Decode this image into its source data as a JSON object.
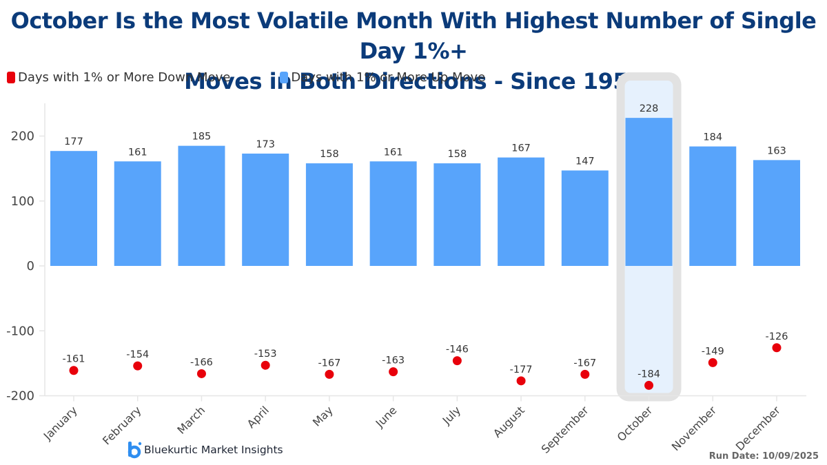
{
  "chart_data": {
    "type": "bar",
    "title": "October Is the Most Volatile Month With Highest Number of Single Day 1%+ Moves in Both Directions - Since 1950",
    "title_lines": [
      "October Is the Most Volatile Month With Highest Number of Single Day 1%+",
      "Moves in Both Directions - Since 1950"
    ],
    "xlabel": "",
    "ylabel": "",
    "ylim": [
      -200,
      250
    ],
    "yticks": [
      200,
      100,
      0,
      -100,
      -200
    ],
    "ytick_labels": [
      "200",
      "100",
      "0",
      "-100",
      "-200"
    ],
    "grid": false,
    "legend_position": "top-left",
    "categories": [
      "January",
      "February",
      "March",
      "April",
      "May",
      "June",
      "July",
      "August",
      "September",
      "October",
      "November",
      "December"
    ],
    "series": [
      {
        "name": "Days with 1% or More Down Move",
        "kind": "scatter",
        "color": "#e8000b",
        "values": [
          -161,
          -154,
          -166,
          -153,
          -167,
          -163,
          -146,
          -177,
          -167,
          -184,
          -149,
          -126
        ]
      },
      {
        "name": "Days with 1% or More Up Move",
        "kind": "bar",
        "color": "#58a4fb",
        "values": [
          177,
          161,
          185,
          173,
          158,
          161,
          158,
          167,
          147,
          228,
          184,
          163
        ]
      }
    ],
    "highlight": {
      "category": "October",
      "fill": "#e6f1fd",
      "border": "#e2e2e2"
    }
  },
  "branding": {
    "logo_text": "Bluekurtic Market Insights",
    "run_date": "Run Date: 10/09/2025"
  },
  "colors": {
    "title": "#0b3b7a",
    "axis": "#e6e6e6",
    "label": "#333333"
  }
}
